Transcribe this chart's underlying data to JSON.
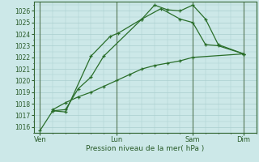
{
  "bg_color": "#cce8e8",
  "grid_color": "#aacfcf",
  "line_color": "#2a6e2a",
  "marker_color": "#2a6e2a",
  "xlabel": "Pression niveau de la mer( hPa )",
  "ylim": [
    1015.5,
    1026.8
  ],
  "yticks": [
    1016,
    1017,
    1018,
    1019,
    1020,
    1021,
    1022,
    1023,
    1024,
    1025,
    1026
  ],
  "xtick_labels": [
    "Ven",
    "Lun",
    "Sam",
    "Dim"
  ],
  "xtick_positions": [
    0,
    36,
    72,
    96
  ],
  "xlim": [
    -3,
    102
  ],
  "series1_x": [
    0,
    6,
    12,
    24,
    33,
    37,
    48,
    57,
    66,
    72,
    78,
    84,
    96
  ],
  "series1_y": [
    1015.7,
    1017.4,
    1017.3,
    1022.1,
    1023.8,
    1024.1,
    1025.3,
    1026.2,
    1025.3,
    1025.0,
    1023.1,
    1023.0,
    1022.3
  ],
  "series2_x": [
    6,
    12,
    18,
    24,
    30,
    48,
    54,
    60,
    66,
    72,
    78,
    84,
    96
  ],
  "series2_y": [
    1017.4,
    1017.5,
    1019.3,
    1020.3,
    1022.1,
    1025.3,
    1026.5,
    1026.1,
    1026.0,
    1026.5,
    1025.3,
    1023.1,
    1022.3
  ],
  "series3_x": [
    6,
    12,
    18,
    24,
    30,
    36,
    42,
    48,
    54,
    60,
    66,
    72,
    96
  ],
  "series3_y": [
    1017.5,
    1018.1,
    1018.6,
    1019.0,
    1019.5,
    1020.0,
    1020.5,
    1021.0,
    1021.3,
    1021.5,
    1021.7,
    1022.0,
    1022.3
  ],
  "vline_positions": [
    0,
    36,
    72,
    96
  ],
  "vline_color": "#557755"
}
